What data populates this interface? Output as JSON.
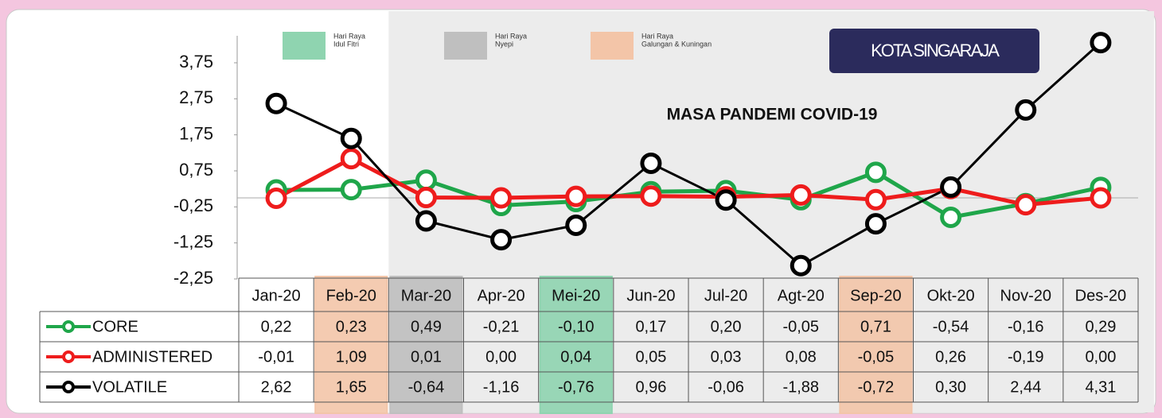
{
  "chart_data": {
    "type": "line",
    "title": "MASA PANDEMI COVID-19",
    "badge": "KOTA SINGARAJA",
    "categories": [
      "Jan-20",
      "Feb-20",
      "Mar-20",
      "Apr-20",
      "Mei-20",
      "Jun-20",
      "Jul-20",
      "Agt-20",
      "Sep-20",
      "Okt-20",
      "Nov-20",
      "Des-20"
    ],
    "series": [
      {
        "name": "CORE",
        "color": "#1fa64a",
        "values": [
          0.22,
          0.23,
          0.49,
          -0.21,
          -0.1,
          0.17,
          0.2,
          -0.05,
          0.71,
          -0.54,
          -0.16,
          0.29
        ],
        "value_labels": [
          "0,22",
          "0,23",
          "0,49",
          "-0,21",
          "-0,10",
          "0,17",
          "0,20",
          "-0,05",
          "0,71",
          "-0,54",
          "-0,16",
          "0,29"
        ]
      },
      {
        "name": "ADMINISTERED",
        "color": "#ee1c1c",
        "values": [
          -0.01,
          1.09,
          0.01,
          0.0,
          0.04,
          0.05,
          0.03,
          0.08,
          -0.05,
          0.26,
          -0.19,
          0.0
        ],
        "value_labels": [
          "-0,01",
          "1,09",
          "0,01",
          "0,00",
          "0,04",
          "0,05",
          "0,03",
          "0,08",
          "-0,05",
          "0,26",
          "-0,19",
          "0,00"
        ]
      },
      {
        "name": "VOLATILE",
        "color": "#000000",
        "values": [
          2.62,
          1.65,
          -0.64,
          -1.16,
          -0.76,
          0.96,
          -0.06,
          -1.88,
          -0.72,
          0.3,
          2.44,
          4.31
        ],
        "value_labels": [
          "2,62",
          "1,65",
          "-0,64",
          "-1,16",
          "-0,76",
          "0,96",
          "-0,06",
          "-1,88",
          "-0,72",
          "0,30",
          "2,44",
          "4,31"
        ]
      }
    ],
    "ylim": [
      -2.25,
      4.5
    ],
    "yticks": [
      {
        "value": 3.75,
        "label": "3,75"
      },
      {
        "value": 2.75,
        "label": "2,75"
      },
      {
        "value": 1.75,
        "label": "1,75"
      },
      {
        "value": 0.75,
        "label": "0,75"
      },
      {
        "value": -0.25,
        "label": "-0,25"
      },
      {
        "value": -1.25,
        "label": "-1,25"
      },
      {
        "value": -2.25,
        "label": "-2,25"
      }
    ],
    "highlights": [
      {
        "label": [
          "Hari Raya",
          "Idul Fitri"
        ],
        "color": "#8fd4b0",
        "categories": [
          "Mei-20"
        ]
      },
      {
        "label": [
          "Hari Raya",
          "Nyepi"
        ],
        "color": "#bfbfbf",
        "categories": [
          "Mar-20"
        ]
      },
      {
        "label": [
          "Hari Raya",
          "Galungan & Kuningan"
        ],
        "color": "#f3c5a8",
        "categories": [
          "Feb-20",
          "Sep-20"
        ]
      }
    ],
    "shaded_from": "Mar-20"
  }
}
